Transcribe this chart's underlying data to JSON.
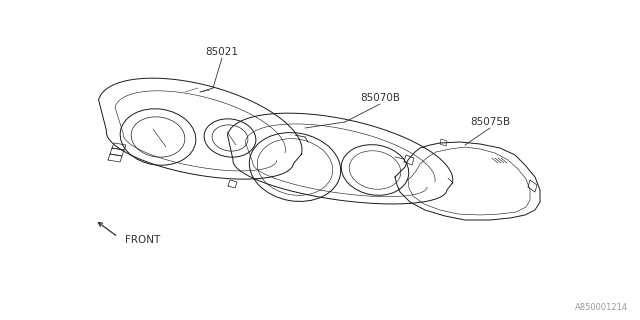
{
  "bg_color": "#ffffff",
  "line_color": "#1a1a1a",
  "line_width": 0.7,
  "labels": {
    "part1": "85021",
    "part2": "85070B",
    "part3": "85075B",
    "front": "FRONT"
  },
  "watermark": "A850001214",
  "font_size_labels": 7,
  "font_size_watermark": 6
}
